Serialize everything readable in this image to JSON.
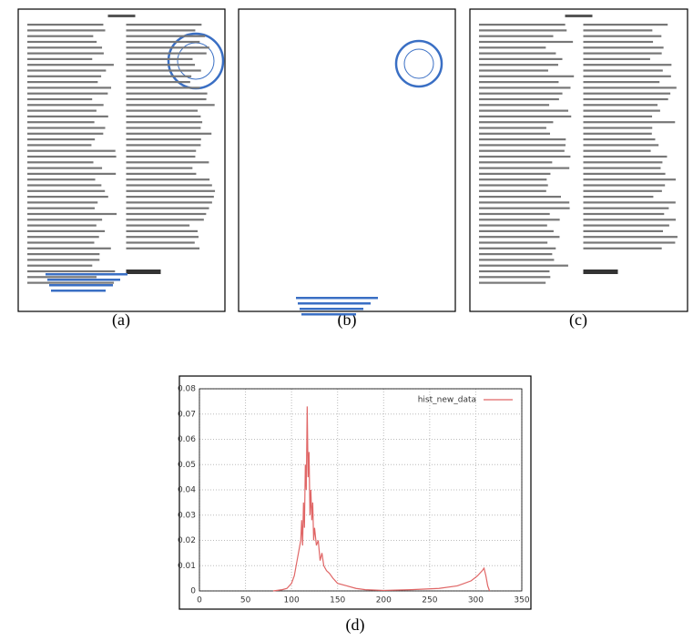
{
  "panels": [
    {
      "caption": "(a)"
    },
    {
      "caption": "(b)"
    },
    {
      "caption": "(c)"
    },
    {
      "caption": "(d)"
    }
  ],
  "chart_data": {
    "type": "line",
    "x": [
      80,
      90,
      95,
      100,
      103,
      106,
      108,
      110,
      111,
      112,
      113,
      114,
      115,
      116,
      117,
      118,
      119,
      120,
      121,
      122,
      123,
      124,
      125,
      127,
      129,
      131,
      133,
      135,
      138,
      141,
      145,
      150,
      160,
      170,
      180,
      200,
      230,
      260,
      280,
      295,
      302,
      307,
      309,
      311,
      313,
      315
    ],
    "series": [
      {
        "name": "hist_new_data",
        "color": "#e06666",
        "values": [
          0,
          0.0005,
          0.001,
          0.003,
          0.006,
          0.012,
          0.016,
          0.02,
          0.028,
          0.018,
          0.035,
          0.025,
          0.05,
          0.04,
          0.073,
          0.045,
          0.055,
          0.03,
          0.04,
          0.028,
          0.035,
          0.02,
          0.025,
          0.018,
          0.02,
          0.012,
          0.015,
          0.01,
          0.008,
          0.007,
          0.005,
          0.003,
          0.002,
          0.001,
          0.0005,
          0.0002,
          0.0005,
          0.001,
          0.002,
          0.004,
          0.006,
          0.008,
          0.009,
          0.006,
          0.002,
          0
        ]
      }
    ],
    "xlim": [
      0,
      350
    ],
    "xticks": [
      0,
      50,
      100,
      150,
      200,
      250,
      300,
      350
    ],
    "ylim": [
      0,
      0.08
    ],
    "yticks": [
      0,
      0.01,
      0.02,
      0.03,
      0.04,
      0.05,
      0.06,
      0.07,
      0.08
    ],
    "grid": true,
    "legend": "upper right"
  }
}
